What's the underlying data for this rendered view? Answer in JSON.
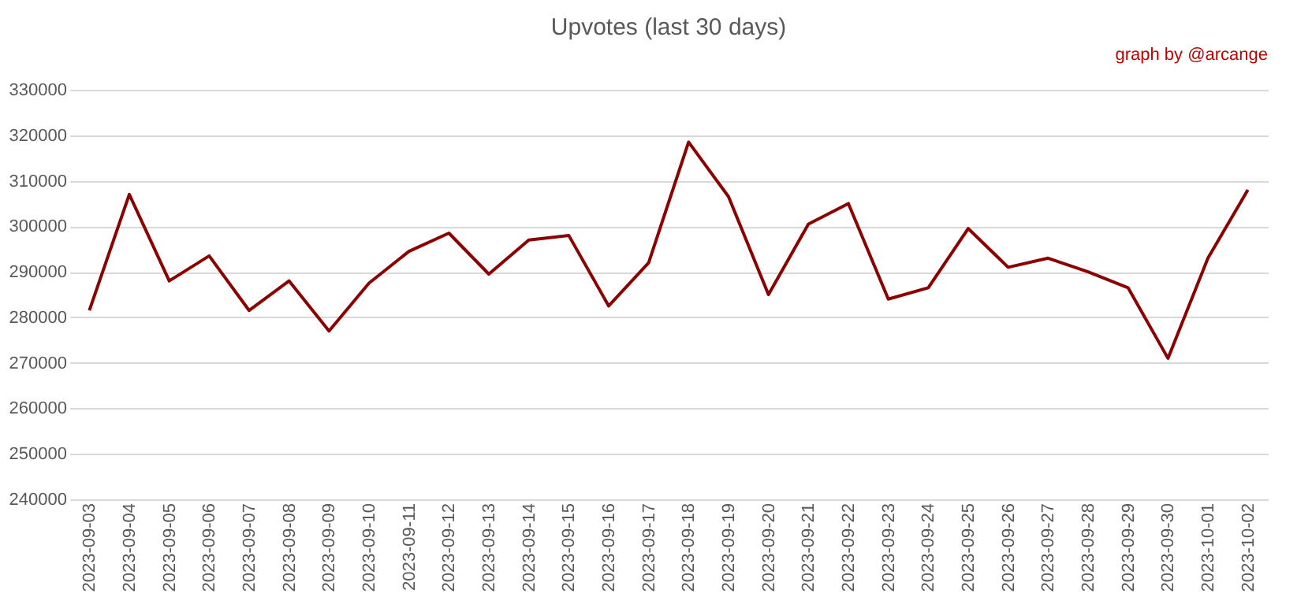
{
  "chart_data": {
    "type": "line",
    "title": "Upvotes (last 30 days)",
    "annotations": [
      "graph by @arcange"
    ],
    "categories": [
      "2023-09-03",
      "2023-09-04",
      "2023-09-05",
      "2023-09-06",
      "2023-09-07",
      "2023-09-08",
      "2023-09-09",
      "2023-09-10",
      "2023-09-11",
      "2023-09-12",
      "2023-09-13",
      "2023-09-14",
      "2023-09-15",
      "2023-09-16",
      "2023-09-17",
      "2023-09-18",
      "2023-09-19",
      "2023-09-20",
      "2023-09-21",
      "2023-09-22",
      "2023-09-23",
      "2023-09-24",
      "2023-09-25",
      "2023-09-26",
      "2023-09-27",
      "2023-09-28",
      "2023-09-29",
      "2023-09-30",
      "2023-10-01",
      "2023-10-02"
    ],
    "series": [
      {
        "color": "#8b0000",
        "values": [
          281500,
          307000,
          288000,
          293500,
          281500,
          288000,
          277000,
          287500,
          294500,
          298500,
          289500,
          297000,
          298000,
          282500,
          292000,
          318500,
          306500,
          285000,
          300500,
          305000,
          284000,
          286500,
          299500,
          291000,
          293000,
          290000,
          286500,
          271000,
          293000,
          308000
        ]
      }
    ],
    "ylim": [
      240000,
      330000
    ],
    "yticks": [
      240000,
      250000,
      260000,
      270000,
      280000,
      290000,
      300000,
      310000,
      320000,
      330000
    ],
    "grid": "y",
    "legend": false,
    "marker": "none",
    "line_style": "solid"
  }
}
